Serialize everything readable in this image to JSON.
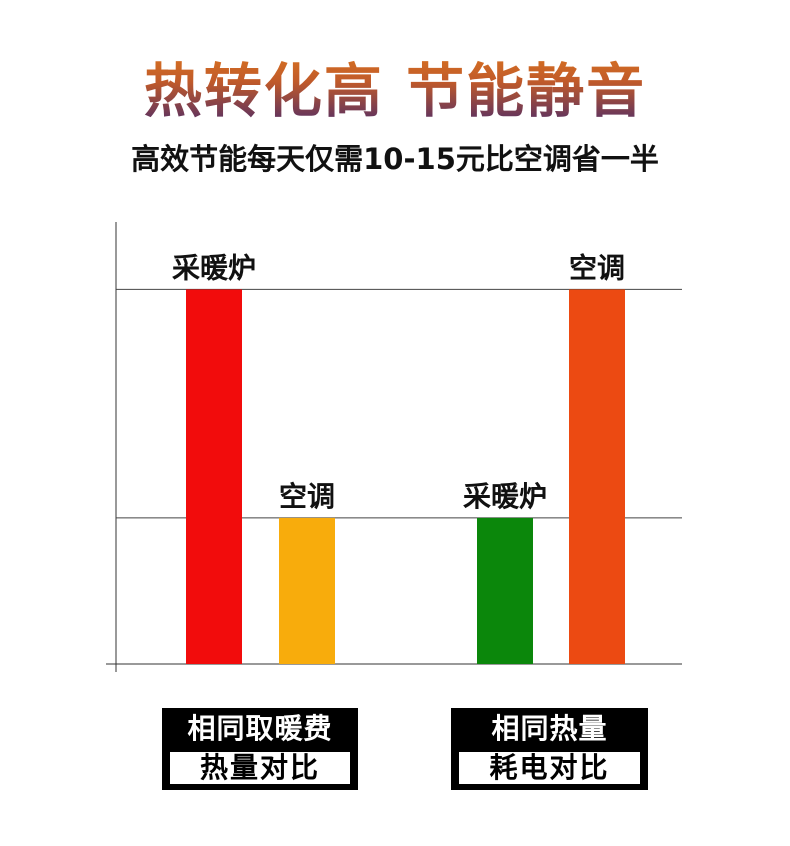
{
  "header": {
    "title": "热转化高  节能静音",
    "subtitle": "高效节能每天仅需10-15元比空调省一半"
  },
  "chart_data": {
    "type": "bar",
    "categories": [
      "采暖炉",
      "空调",
      "采暖炉",
      "空调"
    ],
    "values": [
      100,
      39,
      39,
      100
    ],
    "colors": [
      "#f20c0c",
      "#f8ac0c",
      "#0b870b",
      "#ec4a12"
    ],
    "gridlines": [
      39,
      100
    ],
    "ylim": [
      0,
      118
    ],
    "grid": true,
    "groups": [
      {
        "line1": "相同取暖费",
        "line2": "热量对比"
      },
      {
        "line1": "相同热量",
        "line2": "耗电对比"
      }
    ]
  }
}
